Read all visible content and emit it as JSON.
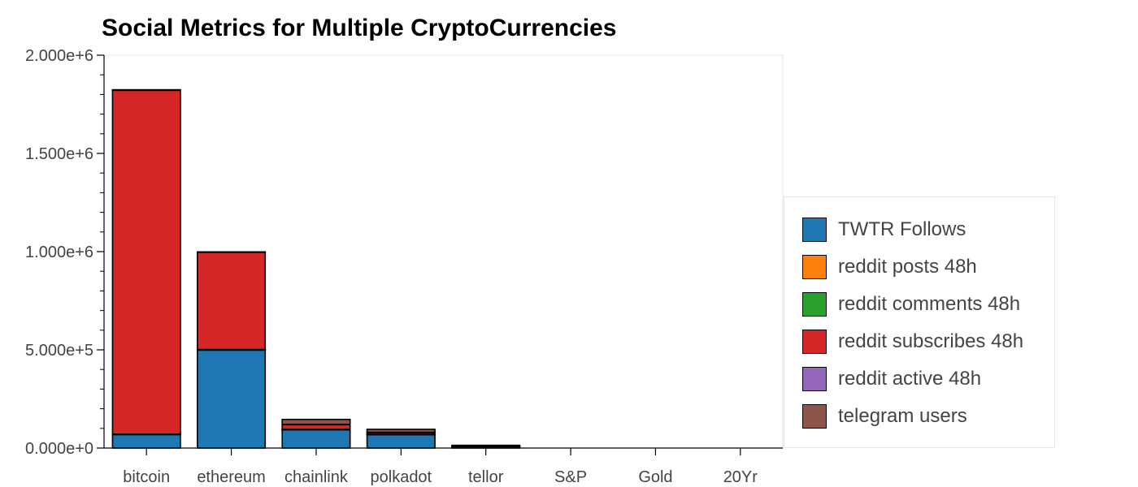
{
  "chart_data": {
    "type": "bar",
    "stacked": true,
    "title": "Social Metrics for Multiple CryptoCurrencies",
    "xlabel": "",
    "ylabel": "",
    "categories": [
      "bitcoin",
      "ethereum",
      "chainlink",
      "polkadot",
      "tellor",
      "S&P",
      "Gold",
      "20Yr"
    ],
    "ylim": [
      0,
      2000000
    ],
    "yticks": [
      0,
      500000,
      1000000,
      1500000,
      2000000
    ],
    "ytick_labels": [
      "0.000e+0",
      "5.000e+5",
      "1.000e+6",
      "1.500e+6",
      "2.000e+6"
    ],
    "grid": false,
    "legend_position": "right",
    "series": [
      {
        "name": "TWTR Follows",
        "color": "#1f77b4",
        "values": [
          70000,
          500000,
          95000,
          70000,
          8000,
          0,
          0,
          0
        ]
      },
      {
        "name": "reddit posts 48h",
        "color": "#ff7f0e",
        "values": [
          100,
          200,
          50,
          20,
          0,
          0,
          0,
          0
        ]
      },
      {
        "name": "reddit comments 48h",
        "color": "#2ca02c",
        "values": [
          1000,
          1500,
          200,
          100,
          0,
          0,
          0,
          0
        ]
      },
      {
        "name": "reddit subscribes 48h",
        "color": "#d62728",
        "values": [
          1750000,
          495000,
          25000,
          10000,
          1000,
          0,
          0,
          0
        ]
      },
      {
        "name": "reddit active 48h",
        "color": "#9467bd",
        "values": [
          3000,
          2000,
          500,
          300,
          0,
          0,
          0,
          0
        ]
      },
      {
        "name": "telegram users",
        "color": "#8c564b",
        "values": [
          0,
          0,
          25000,
          15000,
          5000,
          0,
          0,
          0
        ]
      }
    ]
  }
}
